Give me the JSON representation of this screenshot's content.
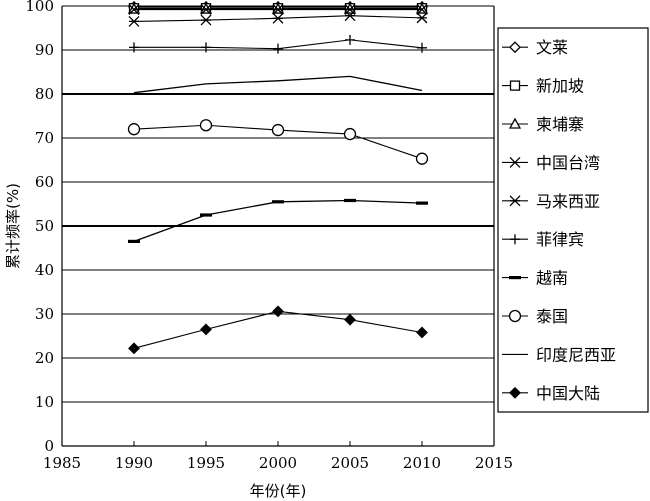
{
  "chart_data": {
    "type": "line",
    "title": "",
    "xlabel": "年份(年)",
    "ylabel": "累计频率(%)",
    "xlim": [
      1985,
      2015
    ],
    "ylim": [
      0,
      100
    ],
    "x_ticks": [
      "1985",
      "1990",
      "1995",
      "2000",
      "2005",
      "2010",
      "2015"
    ],
    "y_ticks": [
      "0",
      "10",
      "20",
      "30",
      "40",
      "50",
      "60",
      "70",
      "80",
      "90",
      "100"
    ],
    "grid": "horizontal",
    "legend_position": "right",
    "x": [
      1990,
      1995,
      2000,
      2005,
      2010
    ],
    "series": [
      {
        "name": "文莱",
        "marker": "diamond-open",
        "values": [
          99.8,
          99.8,
          99.8,
          99.8,
          99.8
        ]
      },
      {
        "name": "新加坡",
        "marker": "square-open",
        "values": [
          99.5,
          99.5,
          99.5,
          99.5,
          99.5
        ]
      },
      {
        "name": "柬埔寨",
        "marker": "triangle-open",
        "values": [
          99.3,
          99.3,
          99.3,
          99.3,
          99.3
        ]
      },
      {
        "name": "中国台湾",
        "marker": "x",
        "values": [
          99.2,
          99.2,
          99.2,
          99.2,
          99.2
        ]
      },
      {
        "name": "马来西亚",
        "marker": "asterisk",
        "values": [
          96.5,
          96.8,
          97.2,
          97.8,
          97.3
        ]
      },
      {
        "name": "菲律宾",
        "marker": "plus",
        "values": [
          90.6,
          90.6,
          90.3,
          92.3,
          90.5
        ]
      },
      {
        "name": "越南",
        "marker": "dash",
        "values": [
          46.5,
          52.5,
          55.5,
          55.8,
          55.2
        ]
      },
      {
        "name": "泰国",
        "marker": "circle-open",
        "values": [
          72.0,
          72.9,
          71.8,
          70.9,
          65.3
        ]
      },
      {
        "name": "印度尼西亚",
        "marker": "none",
        "values": [
          80.3,
          82.3,
          83.0,
          84.0,
          80.8
        ]
      },
      {
        "name": "中国大陆",
        "marker": "diamond-filled",
        "values": [
          22.2,
          26.5,
          30.6,
          28.7,
          25.8
        ]
      }
    ]
  }
}
